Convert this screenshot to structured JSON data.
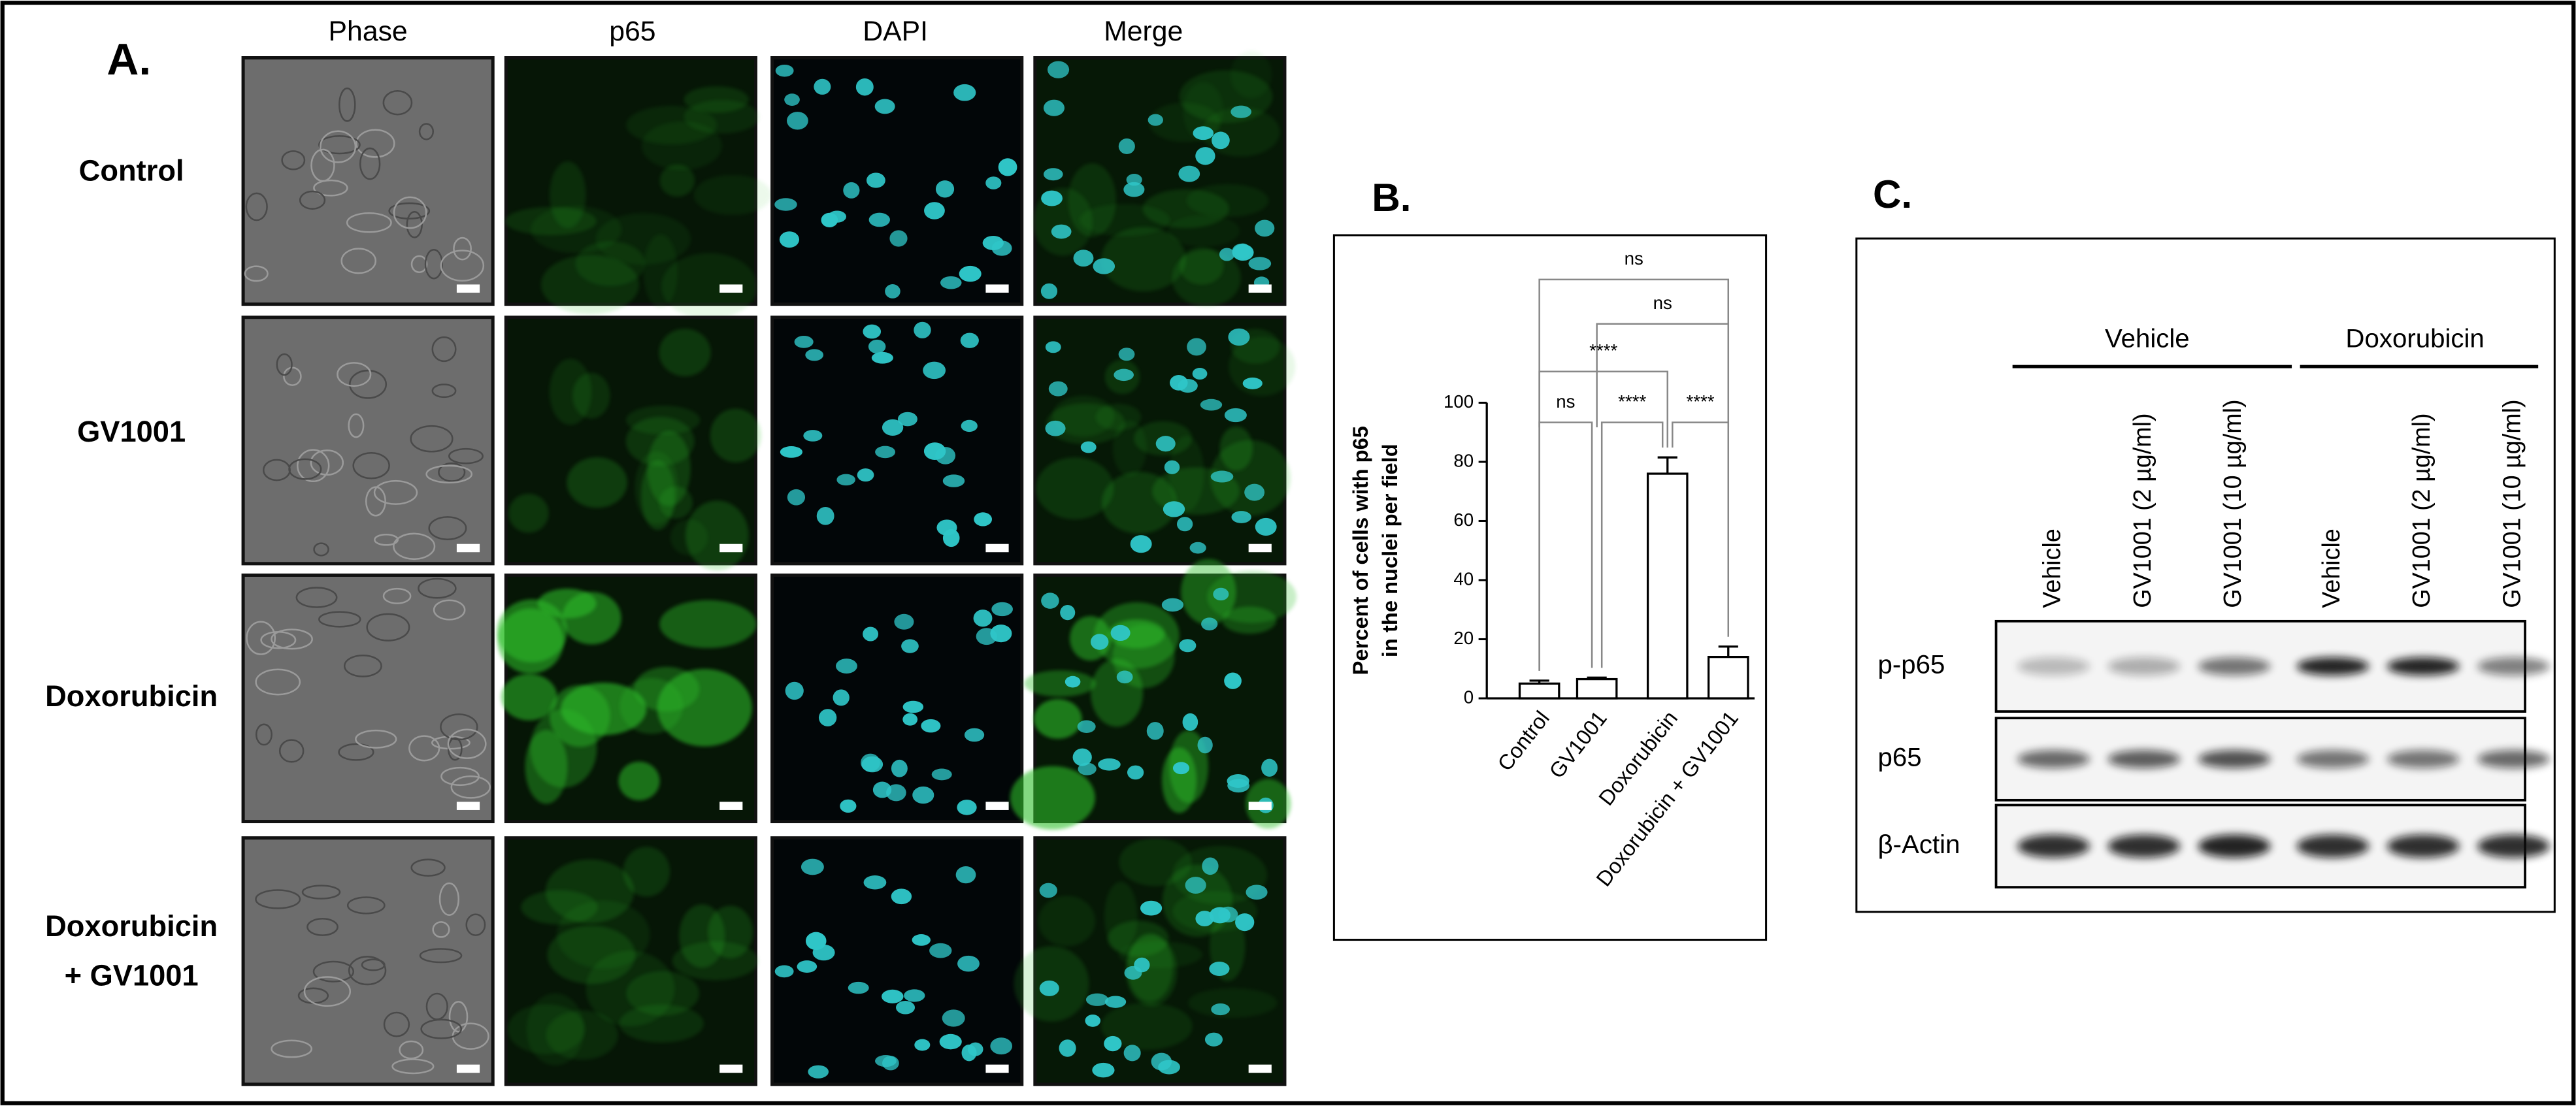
{
  "panel_labels": [
    "A.",
    "B.",
    "C."
  ],
  "panel_a": {
    "columns": [
      "Phase",
      "p65",
      "DAPI",
      "Merge"
    ],
    "rows": [
      [
        "Control"
      ],
      [
        "GV1001"
      ],
      [
        "Doxorubicin"
      ],
      [
        "Doxorubicin",
        "+ GV1001"
      ]
    ]
  },
  "chart_data": {
    "type": "bar",
    "categories": [
      "Control",
      "GV1001",
      "Doxorubicin",
      "Doxorubicin + GV1001"
    ],
    "values": [
      5,
      6.5,
      76,
      14
    ],
    "errors": [
      1,
      0.5,
      5.5,
      3.5
    ],
    "color": "#ffffff",
    "ylabel": [
      "Percent of cells with p65",
      "in the nuclei per field"
    ],
    "ylim": [
      0,
      100
    ],
    "yticks": [
      0,
      20,
      40,
      60,
      80,
      100
    ],
    "annotations": [
      "ns",
      "ns",
      "****",
      "ns",
      "****",
      "****"
    ]
  },
  "panel_c": {
    "groups": [
      "Vehicle",
      "Doxorubicin"
    ],
    "lanes": [
      "Vehicle",
      "GV1001 (2 µg/ml)",
      "GV1001 (10 µg/ml)",
      "Vehicle",
      "GV1001 (2 µg/ml)",
      "GV1001 (10 µg/ml)"
    ],
    "rows": [
      "p-p65",
      "p65",
      "β-Actin"
    ]
  }
}
